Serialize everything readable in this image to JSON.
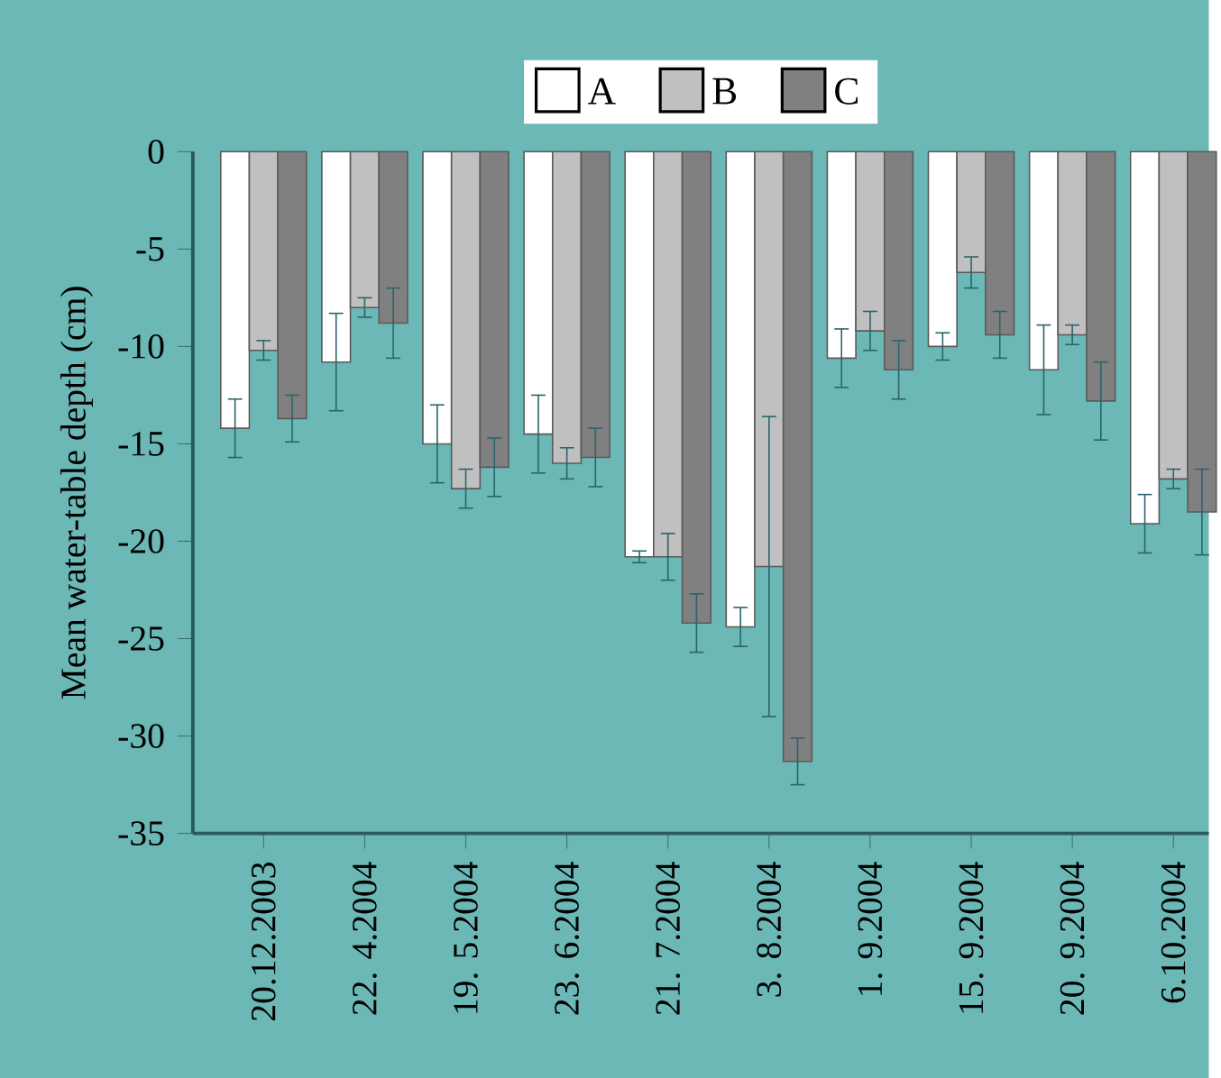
{
  "chart_data": {
    "type": "bar",
    "ylabel": "Mean water-table depth (cm)",
    "categories": [
      "20.12.2003",
      "22. 4.2004",
      "19. 5.2004",
      "23. 6.2004",
      "21. 7.2004",
      "3. 8.2004",
      "1. 9.2004",
      "15. 9.2004",
      "20. 9.2004",
      "6.10.2004"
    ],
    "series": [
      {
        "name": "A",
        "color": "#ffffff",
        "values": [
          -14.2,
          -10.8,
          -15.0,
          -14.5,
          -20.8,
          -24.4,
          -10.6,
          -10.0,
          -11.2,
          -19.1
        ],
        "errors": [
          1.5,
          2.5,
          2.0,
          2.0,
          0.3,
          1.0,
          1.5,
          0.7,
          2.3,
          1.5
        ]
      },
      {
        "name": "B",
        "color": "#c0c0c0",
        "values": [
          -10.2,
          -8.0,
          -17.3,
          -16.0,
          -20.8,
          -21.3,
          -9.2,
          -6.2,
          -9.4,
          -16.8
        ],
        "errors": [
          0.5,
          0.5,
          1.0,
          0.8,
          1.2,
          7.7,
          1.0,
          0.8,
          0.5,
          0.5
        ]
      },
      {
        "name": "C",
        "color": "#808080",
        "values": [
          -13.7,
          -8.8,
          -16.2,
          -15.7,
          -24.2,
          -31.3,
          -11.2,
          -9.4,
          -12.8,
          -18.5
        ],
        "errors": [
          1.2,
          1.8,
          1.5,
          1.5,
          1.5,
          1.2,
          1.5,
          1.2,
          2.0,
          2.2
        ]
      }
    ],
    "ylim": [
      -35,
      0
    ],
    "yticks": [
      -35,
      -30,
      -25,
      -20,
      -15,
      -10,
      -5,
      0
    ],
    "legend": "top",
    "grid": false
  }
}
